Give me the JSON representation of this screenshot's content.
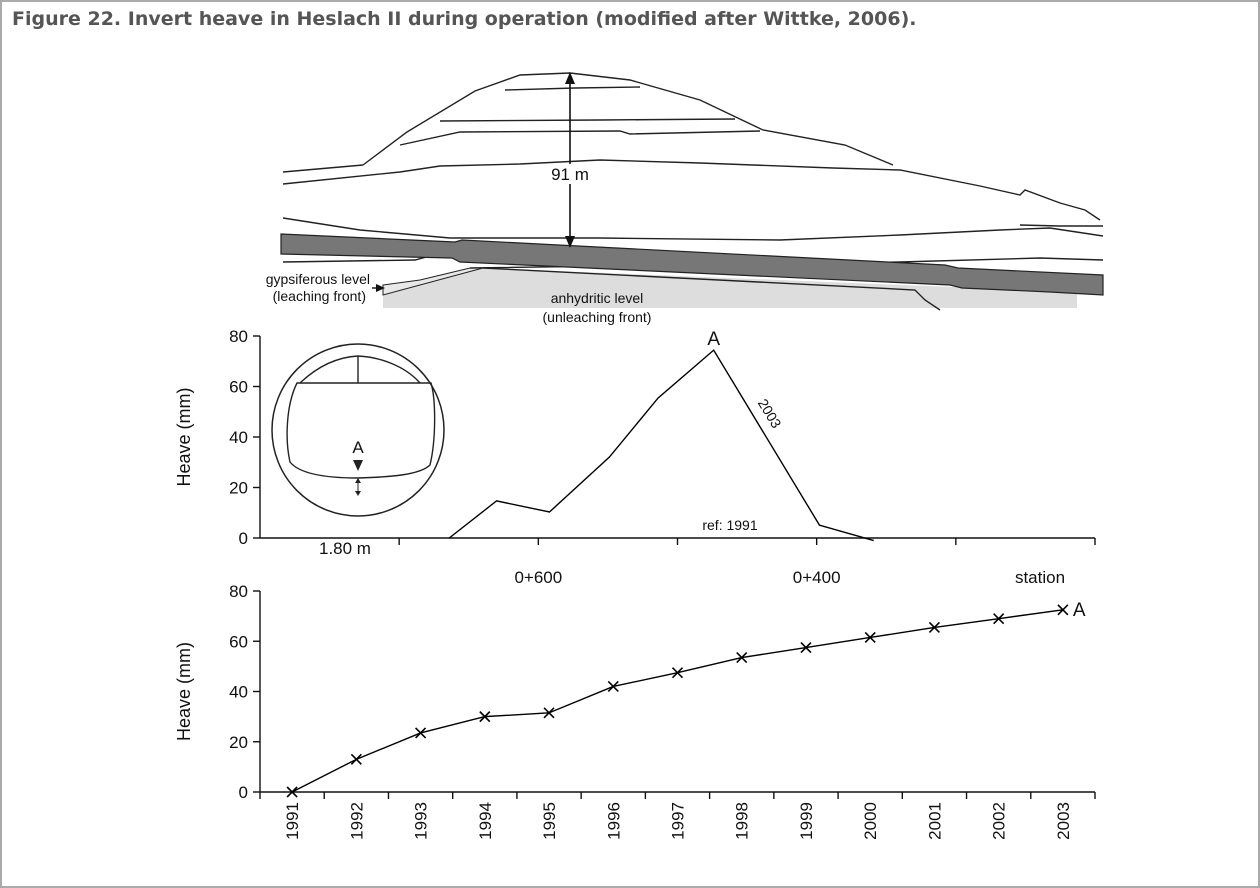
{
  "title": "Figure 22. Invert heave in Heslach II during operation (modified after Wittke, 2006).",
  "cross_section": {
    "depth_label": "91 m",
    "gypsiferous_label": [
      "gypsiferous level",
      "(leaching front)"
    ],
    "anhydritic_label": [
      "anhydritic level",
      "(unleaching front)"
    ]
  },
  "chart_data": [
    {
      "type": "line",
      "ylabel": "Heave (mm)",
      "xlabel": "station",
      "x": [
        664,
        630,
        592,
        549,
        514,
        474,
        398,
        359
      ],
      "series": [
        {
          "name": "2003",
          "color": "#000000",
          "values": [
            0,
            14.7,
            10.3,
            32,
            55.4,
            74.4,
            5.1,
            -1
          ]
        }
      ],
      "xlim": [
        800,
        200
      ],
      "xticks": [
        {
          "value": 600,
          "label": "0+600"
        },
        {
          "value": 400,
          "label": "0+400"
        }
      ],
      "xminorticks": [
        700,
        500,
        300,
        200
      ],
      "ylim": [
        0,
        80
      ],
      "yticks": [
        0,
        20,
        40,
        60,
        80
      ],
      "peak_label": "A",
      "reference_label": "ref: 1991",
      "inset": {
        "point_label": "A",
        "dimension_label": "1.80 m"
      }
    },
    {
      "type": "line",
      "ylabel": "Heave (mm)",
      "categories": [
        "1991",
        "1992",
        "1993",
        "1994",
        "1995",
        "1996",
        "1997",
        "1998",
        "1999",
        "2000",
        "2001",
        "2002",
        "2003"
      ],
      "series": [
        {
          "name": "A",
          "color": "#000000",
          "values": [
            0,
            13,
            23.5,
            30,
            31.5,
            42,
            47.5,
            53.5,
            57.5,
            61.5,
            65.5,
            69,
            72.5
          ]
        }
      ],
      "marker": "x",
      "ylim": [
        0,
        80
      ],
      "yticks": [
        0,
        20,
        40,
        60,
        80
      ]
    }
  ]
}
